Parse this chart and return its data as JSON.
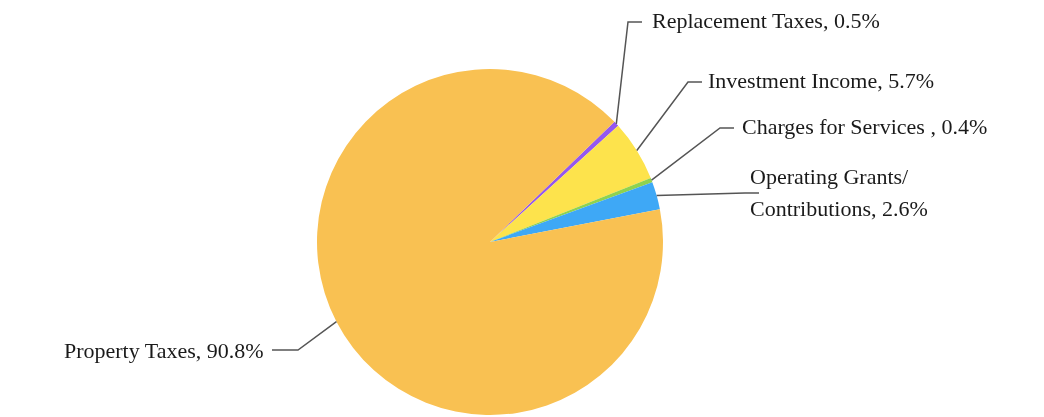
{
  "chart_data": {
    "type": "pie",
    "categories": [
      "Replacement Taxes",
      "Investment Income",
      "Charges for Services ",
      "Operating Grants/ Contributions",
      "Property Taxes"
    ],
    "values": [
      0.5,
      5.7,
      0.4,
      2.6,
      90.8
    ],
    "value_labels": [
      "0.5%",
      "5.7%",
      "0.4%",
      "2.6%",
      "90.8%"
    ],
    "colors": [
      "#9457f0",
      "#fde34c",
      "#8fd24f",
      "#3ea8f6",
      "#f9c152"
    ],
    "legend": false
  }
}
